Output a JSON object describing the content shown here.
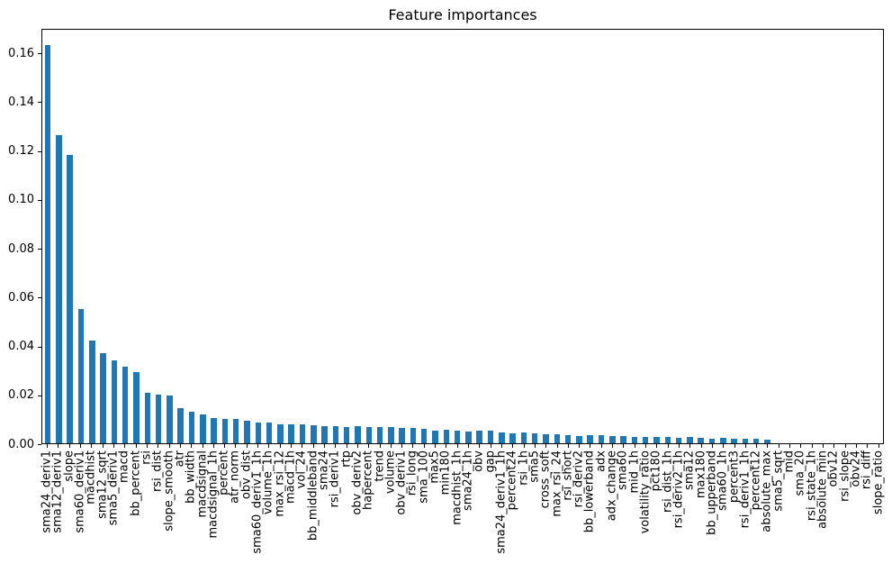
{
  "chart_data": {
    "type": "bar",
    "title": "Feature importances",
    "series_color": "#1f77b4",
    "axis_color": "#000000",
    "background_color": "#ffffff",
    "grid": false,
    "legend": "none",
    "x_tick_rotation": 90,
    "ylim": [
      0,
      0.17
    ],
    "yticks": [
      "0.00",
      "0.02",
      "0.04",
      "0.06",
      "0.08",
      "0.10",
      "0.12",
      "0.14",
      "0.16"
    ],
    "categories": [
      "sma24_deriv1",
      "sma12_deriv1",
      "slope",
      "sma60_deriv1",
      "macdhist",
      "sma12_sqrt",
      "sma5_deriv1",
      "macd",
      "bb_percent",
      "rsi",
      "rsi_dist",
      "slope_smooth",
      "atr",
      "bb_width",
      "macdsignal",
      "macdsignal_1h",
      "percent",
      "atr_norm",
      "obv_dist",
      "sma60_deriv1_1h",
      "volume_1h",
      "max_rsi_12",
      "macd_1h",
      "vol_24",
      "bb_middleband",
      "sma24",
      "rsi_deriv1",
      "rtp",
      "obv_deriv2",
      "hapercent",
      "trend",
      "volume",
      "obv_deriv1",
      "rsi_long",
      "sma_100",
      "max5",
      "min180",
      "macdhist_1h",
      "sma24_1h",
      "obv",
      "gap",
      "sma24_deriv1_1h",
      "percent24",
      "rsi_1h",
      "sma5",
      "cross_soft",
      "max_rsi_24",
      "rsi_short",
      "rsi_deriv2",
      "bb_lowerband",
      "adx",
      "adx_change",
      "sma60",
      "mid_1h",
      "volatility_ratio",
      "pct180",
      "rsi_dist_1h",
      "rsi_deriv2_1h",
      "sma12",
      "max180",
      "bb_upperband",
      "sma60_1h",
      "percent3",
      "rsi_deriv1_1h",
      "percent12",
      "absolute_max",
      "sma5_sqrt",
      "mid",
      "sma_20",
      "rsi_state_1h",
      "absolute_min",
      "obv12",
      "rsi_slope",
      "obv24",
      "rsi_diff",
      "slope_ratio"
    ],
    "values": [
      0.163,
      0.126,
      0.118,
      0.055,
      0.042,
      0.037,
      0.034,
      0.0315,
      0.029,
      0.0207,
      0.0198,
      0.0194,
      0.0142,
      0.0128,
      0.0118,
      0.0104,
      0.0101,
      0.0098,
      0.0092,
      0.0085,
      0.0084,
      0.0077,
      0.0076,
      0.0078,
      0.0072,
      0.0071,
      0.0069,
      0.0068,
      0.007,
      0.0068,
      0.0067,
      0.0068,
      0.0063,
      0.0064,
      0.0059,
      0.0053,
      0.0054,
      0.0051,
      0.0048,
      0.005,
      0.005,
      0.0045,
      0.0042,
      0.0044,
      0.0041,
      0.0036,
      0.0038,
      0.0033,
      0.0031,
      0.0032,
      0.0034,
      0.003,
      0.003,
      0.0027,
      0.0026,
      0.0027,
      0.0025,
      0.0023,
      0.0025,
      0.0021,
      0.002,
      0.0021,
      0.0017,
      0.0019,
      0.0018,
      0.0014,
      0.0001,
      0.0001,
      0.0001,
      0.0001,
      0.0001,
      0.0001,
      0.0001,
      5e-05,
      5e-05,
      3e-05
    ]
  }
}
